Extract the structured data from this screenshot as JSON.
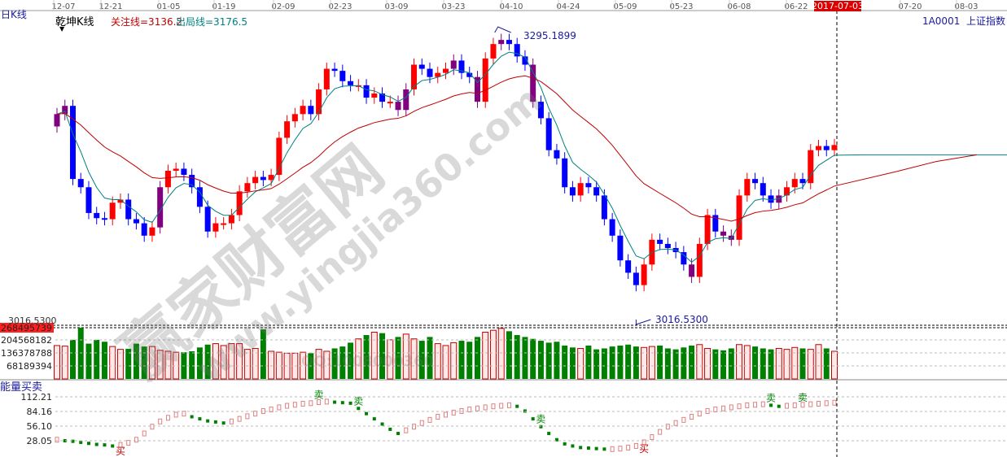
{
  "header": {
    "period_label": "日K线",
    "indicator_name": "乾坤K线",
    "focus_line_label": "关注线=3136.2",
    "exit_line_label": "出局线=3176.5",
    "symbol": "1A0001",
    "symbol_name": "上证指数",
    "cursor_date": "2017-07-03"
  },
  "colors": {
    "up": "#ff0000",
    "down": "#0000ff",
    "transition": "#800080",
    "focus_line": "#c00000",
    "exit_line": "#008080",
    "volume_up": "#c00000",
    "volume_down": "#008000",
    "cursor_badge": "#dd0000"
  },
  "watermark": {
    "brand": "赢家财富网",
    "url": "www.yingjia360.com",
    "qq": "QQ:1008000360"
  },
  "chart_data": [
    {
      "type": "candlestick",
      "title": "乾坤K线",
      "x_ticks": [
        "12-07",
        "12-21",
        "01-05",
        "01-19",
        "02-09",
        "02-23",
        "03-09",
        "03-23",
        "04-10",
        "04-24",
        "05-09",
        "05-23",
        "06-08",
        "06-22",
        "2017-07-03",
        "07-20",
        "08-03"
      ],
      "ylim": [
        3016.53,
        3295.19
      ],
      "closes": [
        3216,
        3224,
        3153,
        3145,
        3120,
        3115,
        3114,
        3130,
        3133,
        3114,
        3110,
        3098,
        3106,
        3145,
        3161,
        3163,
        3157,
        3145,
        3126,
        3102,
        3110,
        3110,
        3118,
        3141,
        3149,
        3155,
        3152,
        3157,
        3193,
        3209,
        3216,
        3224,
        3216,
        3240,
        3260,
        3258,
        3248,
        3244,
        3244,
        3232,
        3236,
        3228,
        3228,
        3220,
        3240,
        3264,
        3260,
        3252,
        3256,
        3260,
        3268,
        3256,
        3252,
        3228,
        3270,
        3284,
        3288,
        3284,
        3272,
        3264,
        3228,
        3212,
        3181,
        3173,
        3145,
        3137,
        3149,
        3145,
        3137,
        3114,
        3098,
        3074,
        3062,
        3050,
        3070,
        3094,
        3090,
        3086,
        3082,
        3070,
        3058,
        3090,
        3118,
        3102,
        3098,
        3094,
        3137,
        3153,
        3149,
        3137,
        3130,
        3137,
        3145,
        3153,
        3149,
        3181,
        3185,
        3181,
        3186
      ],
      "transition_candles": [
        0,
        1,
        13,
        43,
        44,
        50,
        53,
        56,
        60,
        80,
        84,
        85,
        91
      ],
      "annotations": {
        "high": "3295.1899",
        "low": "3016.5300"
      },
      "lines": [
        {
          "name": "关注线",
          "last": 3136.2
        },
        {
          "name": "出局线",
          "last": 3176.5
        }
      ]
    },
    {
      "type": "bar",
      "title": "",
      "y_ticks": [
        "268495739",
        "204568182",
        "136378788",
        "68189394"
      ],
      "top_label": "3016.5300",
      "ylim": [
        0,
        268495739
      ],
      "values": [
        175000000.0,
        172000000.0,
        205000000.0,
        268000000.0,
        185000000.0,
        205000000.0,
        195000000.0,
        170000000.0,
        155000000.0,
        158000000.0,
        185000000.0,
        170000000.0,
        170000000.0,
        150000000.0,
        145000000.0,
        140000000.0,
        140000000.0,
        145000000.0,
        165000000.0,
        180000000.0,
        185000000.0,
        175000000.0,
        185000000.0,
        185000000.0,
        155000000.0,
        160000000.0,
        260000000.0,
        145000000.0,
        140000000.0,
        135000000.0,
        135000000.0,
        140000000.0,
        135000000.0,
        155000000.0,
        145000000.0,
        160000000.0,
        170000000.0,
        190000000.0,
        210000000.0,
        230000000.0,
        245000000.0,
        240000000.0,
        205000000.0,
        220000000.0,
        235000000.0,
        210000000.0,
        200000000.0,
        220000000.0,
        185000000.0,
        175000000.0,
        190000000.0,
        200000000.0,
        195000000.0,
        220000000.0,
        245000000.0,
        255000000.0,
        265000000.0,
        250000000.0,
        230000000.0,
        220000000.0,
        210000000.0,
        200000000.0,
        190000000.0,
        195000000.0,
        175000000.0,
        165000000.0,
        160000000.0,
        175000000.0,
        155000000.0,
        160000000.0,
        170000000.0,
        175000000.0,
        180000000.0,
        170000000.0,
        165000000.0,
        170000000.0,
        175000000.0,
        160000000.0,
        155000000.0,
        165000000.0,
        175000000.0,
        180000000.0,
        160000000.0,
        155000000.0,
        150000000.0,
        160000000.0,
        180000000.0,
        175000000.0,
        170000000.0,
        160000000.0,
        155000000.0,
        160000000.0,
        155000000.0,
        165000000.0,
        160000000.0,
        155000000.0,
        180000000.0,
        160000000.0,
        145000000.0
      ]
    },
    {
      "type": "bar",
      "title": "能量买卖",
      "y_ticks": [
        "112.21",
        "84.16",
        "56.10",
        "28.05"
      ],
      "ylim": [
        0,
        112.21
      ],
      "values": [
        30,
        28,
        27,
        25,
        23,
        21,
        20,
        18,
        20,
        24,
        30,
        42,
        55,
        65,
        72,
        78,
        80,
        74,
        70,
        66,
        64,
        62,
        65,
        70,
        75,
        80,
        85,
        88,
        92,
        95,
        97,
        99,
        100,
        102,
        103,
        102,
        101,
        100,
        90,
        80,
        70,
        60,
        50,
        42,
        48,
        55,
        62,
        68,
        74,
        78,
        82,
        85,
        88,
        90,
        92,
        94,
        95,
        96,
        94,
        85,
        70,
        55,
        42,
        30,
        22,
        18,
        15,
        14,
        13,
        12,
        12,
        13,
        15,
        18,
        25,
        35,
        45,
        55,
        62,
        68,
        74,
        80,
        85,
        88,
        90,
        92,
        94,
        96,
        97,
        98,
        96,
        94,
        95,
        96,
        97,
        98,
        99,
        100,
        101
      ],
      "signals": [
        {
          "index": 8,
          "label": "买",
          "kind": "buy"
        },
        {
          "index": 33,
          "label": "卖",
          "kind": "sell"
        },
        {
          "index": 38,
          "label": "卖",
          "kind": "sell"
        },
        {
          "index": 61,
          "label": "卖",
          "kind": "sell"
        },
        {
          "index": 74,
          "label": "买",
          "kind": "buy"
        },
        {
          "index": 90,
          "label": "卖",
          "kind": "sell"
        },
        {
          "index": 94,
          "label": "卖",
          "kind": "sell"
        }
      ]
    }
  ]
}
